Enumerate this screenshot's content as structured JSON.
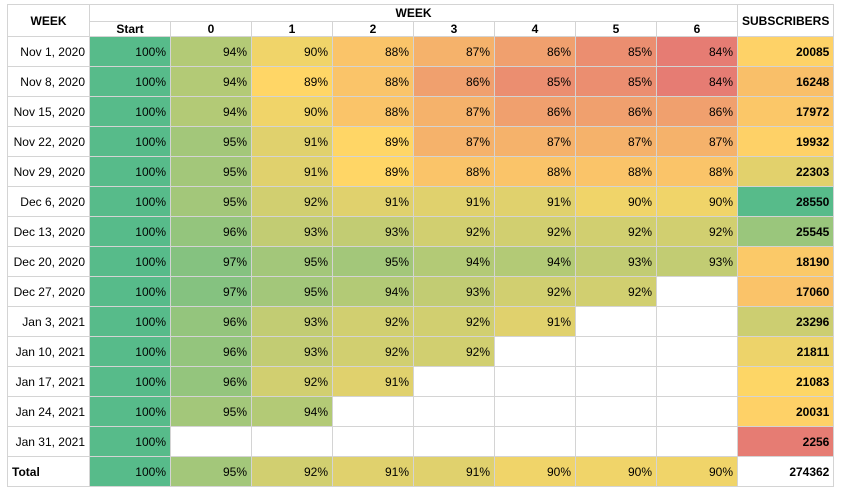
{
  "chart_data": {
    "type": "table",
    "title": "",
    "row_header": "WEEK",
    "column_group_header": "WEEK",
    "subscribers_header": "SUBSCRIBERS",
    "columns": [
      "Start",
      "0",
      "1",
      "2",
      "3",
      "4",
      "5",
      "6"
    ],
    "rows": [
      {
        "week": "Nov 1, 2020",
        "values": [
          100,
          94,
          90,
          88,
          87,
          86,
          85,
          84
        ],
        "subscribers": 20085
      },
      {
        "week": "Nov 8, 2020",
        "values": [
          100,
          94,
          89,
          88,
          86,
          85,
          85,
          84
        ],
        "subscribers": 16248
      },
      {
        "week": "Nov 15, 2020",
        "values": [
          100,
          94,
          90,
          88,
          87,
          86,
          86,
          86
        ],
        "subscribers": 17972
      },
      {
        "week": "Nov 22, 2020",
        "values": [
          100,
          95,
          91,
          89,
          87,
          87,
          87,
          87
        ],
        "subscribers": 19932
      },
      {
        "week": "Nov 29, 2020",
        "values": [
          100,
          95,
          91,
          89,
          88,
          88,
          88,
          88
        ],
        "subscribers": 22303
      },
      {
        "week": "Dec 6, 2020",
        "values": [
          100,
          95,
          92,
          91,
          91,
          91,
          90,
          90
        ],
        "subscribers": 28550
      },
      {
        "week": "Dec 13, 2020",
        "values": [
          100,
          96,
          93,
          93,
          92,
          92,
          92,
          92
        ],
        "subscribers": 25545
      },
      {
        "week": "Dec 20, 2020",
        "values": [
          100,
          97,
          95,
          95,
          94,
          94,
          93,
          93
        ],
        "subscribers": 18190
      },
      {
        "week": "Dec 27, 2020",
        "values": [
          100,
          97,
          95,
          94,
          93,
          92,
          92
        ],
        "subscribers": 17060
      },
      {
        "week": "Jan 3, 2021",
        "values": [
          100,
          96,
          93,
          92,
          92,
          91
        ],
        "subscribers": 23296
      },
      {
        "week": "Jan 10, 2021",
        "values": [
          100,
          96,
          93,
          92,
          92
        ],
        "subscribers": 21811
      },
      {
        "week": "Jan 17, 2021",
        "values": [
          100,
          96,
          92,
          91
        ],
        "subscribers": 21083
      },
      {
        "week": "Jan 24, 2021",
        "values": [
          100,
          95,
          94
        ],
        "subscribers": 20031
      },
      {
        "week": "Jan 31, 2021",
        "values": [
          100
        ],
        "subscribers": 2256
      }
    ],
    "total": {
      "label": "Total",
      "values": [
        100,
        95,
        92,
        91,
        91,
        90,
        90,
        90
      ],
      "subscribers": 274362
    },
    "value_unit": "%",
    "colors": {
      "scale_high": "#57bb8a",
      "scale_mid": "#ffd666",
      "scale_low": "#e67c73"
    }
  }
}
